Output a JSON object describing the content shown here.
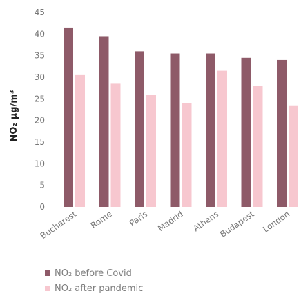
{
  "chart_data": {
    "type": "bar",
    "ylabel": "NO₂ μg/m³",
    "ylim": [
      0,
      45
    ],
    "yticks": [
      0,
      5,
      10,
      15,
      20,
      25,
      30,
      35,
      40,
      45
    ],
    "grid": false,
    "categories": [
      "Bucharest",
      "Rome",
      "Paris",
      "Madrid",
      "Athens",
      "Budapest",
      "London"
    ],
    "series": [
      {
        "name": "NO₂ before Covid",
        "color": "#8e5a68",
        "values": [
          41.5,
          39.5,
          36,
          35.5,
          35.5,
          34.5,
          34
        ]
      },
      {
        "name": "NO₂ after pandemic",
        "color": "#f7c7cf",
        "values": [
          30.5,
          28.5,
          26,
          24,
          31.5,
          28,
          23.5
        ]
      }
    ],
    "legend_position": "bottom-left"
  }
}
